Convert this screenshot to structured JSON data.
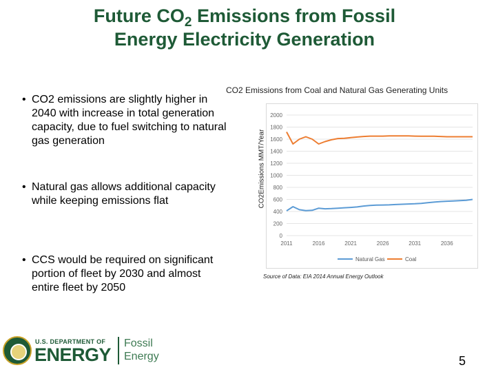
{
  "slide": {
    "title_part1": "Future CO",
    "title_sub": "2",
    "title_part2": " Emissions from Fossil",
    "title_line2": "Energy Electricity Generation",
    "bullets": [
      "CO2 emissions are slightly higher in 2040 with increase in total generation capacity, due to fuel switching to natural gas generation",
      "Natural gas allows additional capacity while keeping emissions flat",
      "CCS would be required on significant portion of fleet by 2030 and almost entire fleet by 2050"
    ],
    "bullet_symbol": "•",
    "source": "Source of Data: EIA 2014 Annual Energy Outlook",
    "page_number": "5"
  },
  "logo": {
    "department": "U.S. DEPARTMENT OF",
    "energy": "ENERGY",
    "fossil_line1": "Fossil",
    "fossil_line2": "Energy"
  },
  "colors": {
    "title": "#1e5a36",
    "natural_gas": "#5b9bd5",
    "coal": "#ed7d31"
  },
  "chart_data": {
    "type": "line",
    "title": "CO2 Emissions from Coal and Natural Gas Generating Units",
    "ylabel": "CO2Emissions MMT/Year",
    "xlabel": "",
    "ylim": [
      0,
      2000
    ],
    "yticks": [
      "0",
      "200",
      "400",
      "600",
      "800",
      "1000",
      "1200",
      "1400",
      "1600",
      "1800",
      "2000"
    ],
    "xlim": [
      2011,
      2040
    ],
    "xticks": [
      "2011",
      "2016",
      "2021",
      "2026",
      "2031",
      "2036"
    ],
    "grid": true,
    "legend": "bottom",
    "x": [
      2011,
      2012,
      2013,
      2014,
      2015,
      2016,
      2017,
      2018,
      2019,
      2020,
      2021,
      2022,
      2023,
      2024,
      2025,
      2026,
      2027,
      2028,
      2029,
      2030,
      2031,
      2032,
      2033,
      2034,
      2035,
      2036,
      2037,
      2038,
      2039,
      2040
    ],
    "series": [
      {
        "name": "Natural Gas",
        "color": "#5b9bd5",
        "values": [
          410,
          480,
          430,
          415,
          420,
          455,
          445,
          448,
          455,
          462,
          468,
          475,
          490,
          500,
          505,
          508,
          510,
          515,
          520,
          525,
          528,
          535,
          545,
          555,
          565,
          570,
          575,
          580,
          585,
          600
        ]
      },
      {
        "name": "Coal",
        "color": "#ed7d31",
        "values": [
          1720,
          1520,
          1600,
          1640,
          1600,
          1520,
          1560,
          1590,
          1610,
          1615,
          1625,
          1635,
          1645,
          1650,
          1650,
          1650,
          1655,
          1655,
          1655,
          1655,
          1650,
          1648,
          1648,
          1648,
          1645,
          1640,
          1640,
          1640,
          1640,
          1640
        ]
      }
    ]
  }
}
